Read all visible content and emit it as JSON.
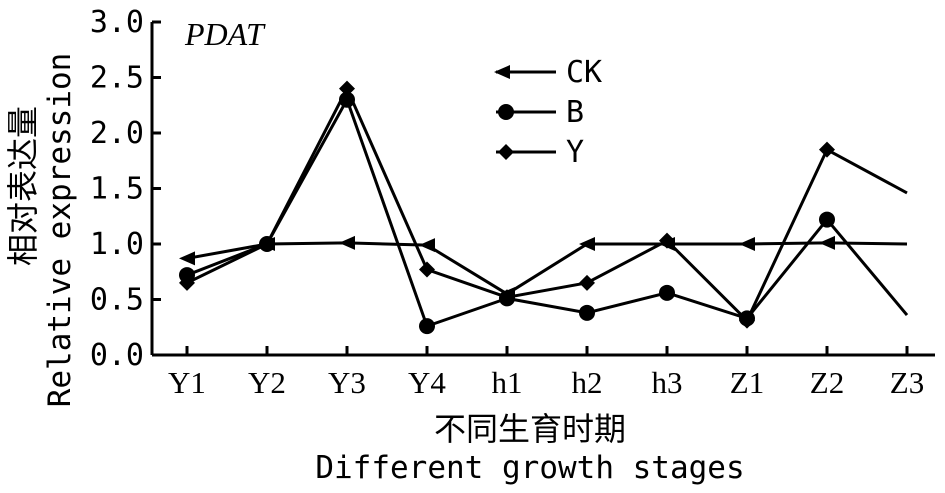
{
  "chart_data": {
    "type": "line",
    "title": "PDAT",
    "xlabel_cn": "不同生育时期",
    "xlabel": "Different growth stages",
    "ylabel_cn": "相对表达量",
    "ylabel": "Relative expression",
    "categories": [
      "Y1",
      "Y2",
      "Y3",
      "Y4",
      "h1",
      "h2",
      "h3",
      "Z1",
      "Z2",
      "Z3"
    ],
    "ylim": [
      0,
      3.0
    ],
    "yticks": [
      "0.0",
      "0.5",
      "1.0",
      "1.5",
      "2.0",
      "2.5",
      "3.0"
    ],
    "grid": false,
    "legend_position": "top-center",
    "series": [
      {
        "name": "CK",
        "marker": "triangle-left",
        "values": [
          0.87,
          1.0,
          1.01,
          0.99,
          0.55,
          1.0,
          1.0,
          1.0,
          1.01,
          1.0
        ]
      },
      {
        "name": "B",
        "marker": "circle",
        "values": [
          0.72,
          1.0,
          2.3,
          0.26,
          0.51,
          0.38,
          0.56,
          0.33,
          1.22,
          0.36
        ]
      },
      {
        "name": "Y",
        "marker": "diamond",
        "values": [
          0.65,
          1.0,
          2.4,
          0.77,
          0.52,
          0.65,
          1.03,
          0.31,
          1.85,
          1.46
        ]
      }
    ]
  }
}
